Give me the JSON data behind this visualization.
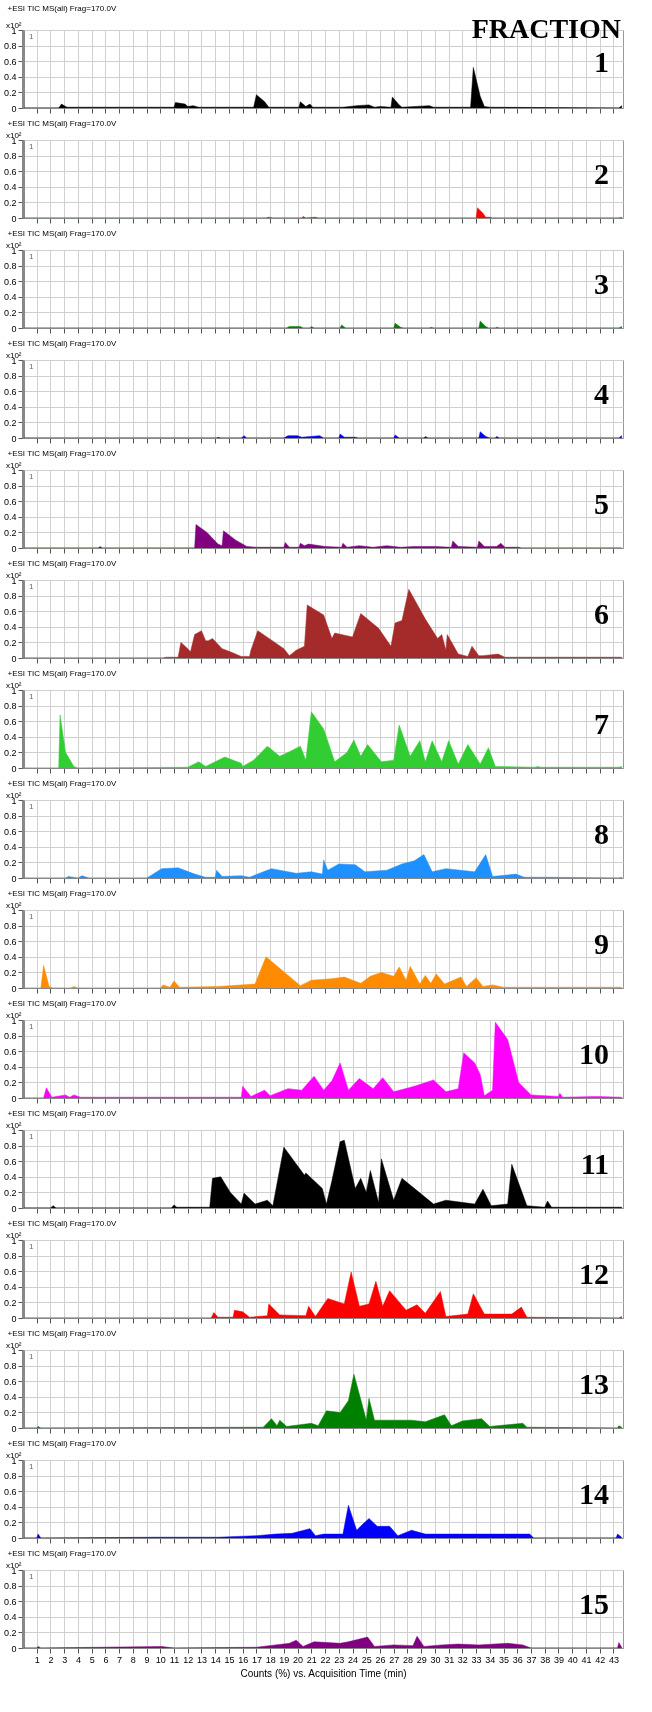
{
  "chart_data": [
    {
      "type": "area",
      "title": "+ESI TIC MS(all) Frag=170.0V",
      "ylabel": "x10²",
      "annotations": [
        "1",
        "FRACTION",
        "1"
      ],
      "xlim": [
        0,
        43.7
      ],
      "ylim": [
        0,
        1
      ],
      "xticks": [
        1,
        2,
        3,
        4,
        5,
        6,
        7,
        8,
        9,
        10,
        11,
        12,
        13,
        14,
        15,
        16,
        17,
        18,
        19,
        20,
        21,
        22,
        23,
        24,
        25,
        26,
        27,
        28,
        29,
        30,
        31,
        32,
        33,
        34,
        35,
        36,
        37,
        38,
        39,
        40,
        41,
        42,
        43
      ],
      "yticks": [
        0,
        0.2,
        0.4,
        0.6,
        0.8,
        1
      ],
      "grid": true,
      "tick_labels": "y",
      "x": [
        0.1,
        2.6,
        2.8,
        3.2,
        11.0,
        11.1,
        11.8,
        12.0,
        12.4,
        12.8,
        16.8,
        17.0,
        17.6,
        17.9,
        20.1,
        20.2,
        20.6,
        20.9,
        21.1,
        23.3,
        24.3,
        25.2,
        25.6,
        26.0,
        26.8,
        26.9,
        27.4,
        27.6,
        29.6,
        29.9,
        32.6,
        32.8,
        33.3,
        33.6,
        34.0,
        43.4,
        43.6
      ],
      "series": [
        {
          "color": "#000000",
          "values": [
            0,
            0,
            0.05,
            0.01,
            0.01,
            0.07,
            0.05,
            0.02,
            0.03,
            0.01,
            0.01,
            0.17,
            0.08,
            0.01,
            0.01,
            0.08,
            0.02,
            0.05,
            0.01,
            0.01,
            0.03,
            0.04,
            0.01,
            0.02,
            0.01,
            0.14,
            0.04,
            0.01,
            0.03,
            0.01,
            0.01,
            0.52,
            0.15,
            0.02,
            0.01,
            0,
            0.03
          ]
        }
      ]
    },
    {
      "type": "area",
      "title": "+ESI TIC MS(all) Frag=170.0V",
      "ylabel": "x10²",
      "annotations": [
        "1",
        "2"
      ],
      "xlim": [
        0,
        43.7
      ],
      "ylim": [
        0,
        1
      ],
      "xticks": [
        1,
        2,
        3,
        4,
        5,
        6,
        7,
        8,
        9,
        10,
        11,
        12,
        13,
        14,
        15,
        16,
        17,
        18,
        19,
        20,
        21,
        22,
        23,
        24,
        25,
        26,
        27,
        28,
        29,
        30,
        31,
        32,
        33,
        34,
        35,
        36,
        37,
        38,
        39,
        40,
        41,
        42,
        43
      ],
      "yticks": [
        0,
        0.2,
        0.4,
        0.6,
        0.8,
        1
      ],
      "grid": true,
      "tick_labels": "y",
      "x": [
        0.1,
        17.7,
        17.9,
        18.2,
        20.3,
        20.4,
        20.6,
        21.3,
        21.5,
        33.0,
        33.1,
        33.5,
        33.7,
        34.0,
        34.2,
        43.4,
        43.6
      ],
      "series": [
        {
          "color": "#ff0000",
          "values": [
            0,
            0,
            0.01,
            0,
            0,
            0.02,
            0,
            0.01,
            0,
            0,
            0.13,
            0.06,
            0.01,
            0.01,
            0,
            0,
            0.01
          ]
        }
      ]
    },
    {
      "type": "area",
      "title": "+ESI TIC MS(all) Frag=170.0V",
      "ylabel": "x10²",
      "annotations": [
        "1",
        "3"
      ],
      "xlim": [
        0,
        43.7
      ],
      "ylim": [
        0,
        1
      ],
      "xticks": [
        1,
        2,
        3,
        4,
        5,
        6,
        7,
        8,
        9,
        10,
        11,
        12,
        13,
        14,
        15,
        16,
        17,
        18,
        19,
        20,
        21,
        22,
        23,
        24,
        25,
        26,
        27,
        28,
        29,
        30,
        31,
        32,
        33,
        34,
        35,
        36,
        37,
        38,
        39,
        40,
        41,
        42,
        43
      ],
      "yticks": [
        0,
        0.2,
        0.4,
        0.6,
        0.8,
        1
      ],
      "grid": true,
      "tick_labels": "y",
      "x": [
        0.1,
        19.2,
        19.4,
        20.2,
        20.4,
        20.9,
        21.0,
        21.2,
        23.1,
        23.2,
        23.5,
        27.0,
        27.1,
        27.5,
        27.7,
        29.6,
        29.7,
        29.9,
        33.2,
        33.3,
        33.7,
        33.9,
        34.4,
        34.5,
        34.7,
        43.4,
        43.6
      ],
      "series": [
        {
          "color": "#008000",
          "values": [
            0,
            0,
            0.02,
            0.02,
            0,
            0,
            0.02,
            0,
            0,
            0.04,
            0,
            0,
            0.06,
            0.01,
            0,
            0,
            0.01,
            0,
            0,
            0.09,
            0.02,
            0,
            0,
            0.01,
            0,
            0,
            0.02
          ]
        }
      ]
    },
    {
      "type": "area",
      "title": "+ESI TIC MS(all) Frag=170.0V",
      "ylabel": "x10²",
      "annotations": [
        "1",
        "4"
      ],
      "xlim": [
        0,
        43.7
      ],
      "ylim": [
        0,
        1
      ],
      "xticks": [
        1,
        2,
        3,
        4,
        5,
        6,
        7,
        8,
        9,
        10,
        11,
        12,
        13,
        14,
        15,
        16,
        17,
        18,
        19,
        20,
        21,
        22,
        23,
        24,
        25,
        26,
        27,
        28,
        29,
        30,
        31,
        32,
        33,
        34,
        35,
        36,
        37,
        38,
        39,
        40,
        41,
        42,
        43
      ],
      "yticks": [
        0,
        0.2,
        0.4,
        0.6,
        0.8,
        1
      ],
      "grid": true,
      "tick_labels": "y",
      "x": [
        0.1,
        14.1,
        14.2,
        14.4,
        15.9,
        16.1,
        16.3,
        19.0,
        19.3,
        20.0,
        20.3,
        21.6,
        21.9,
        23.0,
        23.1,
        23.4,
        24.2,
        24.4,
        27.0,
        27.1,
        27.4,
        29.2,
        29.3,
        29.5,
        33.2,
        33.3,
        33.7,
        34.0,
        34.4,
        34.5,
        34.7,
        43.4,
        43.6
      ],
      "series": [
        {
          "color": "#0000ff",
          "values": [
            0,
            0,
            0.01,
            0,
            0,
            0.03,
            0,
            0,
            0.03,
            0.03,
            0.01,
            0.03,
            0,
            0,
            0.05,
            0.01,
            0.01,
            0,
            0,
            0.04,
            0,
            0,
            0.02,
            0,
            0,
            0.08,
            0.02,
            0,
            0,
            0.02,
            0,
            0,
            0.03
          ]
        }
      ]
    },
    {
      "type": "area",
      "title": "+ESI TIC MS(all) Frag=170.0V",
      "ylabel": "x10²",
      "annotations": [
        "1",
        "5"
      ],
      "xlim": [
        0,
        43.7
      ],
      "ylim": [
        0,
        1
      ],
      "xticks": [
        1,
        2,
        3,
        4,
        5,
        6,
        7,
        8,
        9,
        10,
        11,
        12,
        13,
        14,
        15,
        16,
        17,
        18,
        19,
        20,
        21,
        22,
        23,
        24,
        25,
        26,
        27,
        28,
        29,
        30,
        31,
        32,
        33,
        34,
        35,
        36,
        37,
        38,
        39,
        40,
        41,
        42,
        43
      ],
      "yticks": [
        0,
        0.2,
        0.4,
        0.6,
        0.8,
        1
      ],
      "grid": true,
      "tick_labels": "y",
      "x": [
        0.1,
        5.5,
        5.6,
        5.8,
        12.5,
        12.6,
        13.4,
        14.2,
        14.5,
        14.6,
        15.5,
        16.3,
        17.0,
        19.0,
        19.1,
        19.4,
        20.1,
        20.2,
        20.5,
        20.8,
        22.0,
        23.2,
        23.3,
        23.6,
        24.5,
        25.5,
        26.5,
        27.5,
        28.5,
        30.0,
        31.2,
        31.3,
        31.7,
        33.1,
        33.2,
        33.6,
        34.5,
        34.8,
        35.1,
        36.1,
        36.3,
        43.6
      ],
      "series": [
        {
          "color": "#800080",
          "values": [
            0,
            0,
            0.02,
            0,
            0,
            0.3,
            0.2,
            0.05,
            0.03,
            0.22,
            0.1,
            0.02,
            0.01,
            0.01,
            0.07,
            0.01,
            0.01,
            0.06,
            0.03,
            0.05,
            0.02,
            0.01,
            0.06,
            0.01,
            0.03,
            0.01,
            0.03,
            0.01,
            0.02,
            0.02,
            0.01,
            0.09,
            0.02,
            0.01,
            0.09,
            0.02,
            0.02,
            0.06,
            0.01,
            0.01,
            0,
            0
          ]
        }
      ]
    },
    {
      "type": "area",
      "title": "+ESI TIC MS(all) Frag=170.0V",
      "ylabel": "x10²",
      "annotations": [
        "1",
        "6"
      ],
      "xlim": [
        0,
        43.7
      ],
      "ylim": [
        0,
        1
      ],
      "xticks": [
        1,
        2,
        3,
        4,
        5,
        6,
        7,
        8,
        9,
        10,
        11,
        12,
        13,
        14,
        15,
        16,
        17,
        18,
        19,
        20,
        21,
        22,
        23,
        24,
        25,
        26,
        27,
        28,
        29,
        30,
        31,
        32,
        33,
        34,
        35,
        36,
        37,
        38,
        39,
        40,
        41,
        42,
        43
      ],
      "yticks": [
        0,
        0.2,
        0.4,
        0.6,
        0.8,
        1
      ],
      "grid": true,
      "tick_labels": "y",
      "x": [
        0.1,
        10.2,
        10.4,
        11.3,
        11.5,
        12.0,
        12.2,
        12.5,
        13.0,
        13.3,
        13.5,
        13.8,
        14.5,
        15.1,
        15.9,
        16.5,
        16.6,
        17.1,
        19.0,
        19.4,
        19.9,
        20.5,
        20.7,
        21.9,
        22.5,
        22.7,
        24.0,
        24.6,
        25.9,
        26.8,
        27.1,
        27.6,
        28.1,
        29.3,
        30.2,
        30.5,
        30.8,
        30.9,
        31.7,
        32.4,
        32.7,
        33.2,
        33.5,
        34.6,
        35.1,
        37.0,
        43.6
      ],
      "series": [
        {
          "color": "#a52a2a",
          "values": [
            0,
            0,
            0.01,
            0.01,
            0.2,
            0.12,
            0.08,
            0.3,
            0.35,
            0.22,
            0.22,
            0.25,
            0.12,
            0.08,
            0.02,
            0.02,
            0.1,
            0.35,
            0.12,
            0.03,
            0.1,
            0.15,
            0.68,
            0.55,
            0.25,
            0.32,
            0.27,
            0.57,
            0.38,
            0.15,
            0.45,
            0.48,
            0.88,
            0.5,
            0.25,
            0.3,
            0.1,
            0.3,
            0.05,
            0.02,
            0.15,
            0.03,
            0.03,
            0.05,
            0.01,
            0.01,
            0.01
          ]
        }
      ]
    },
    {
      "type": "area",
      "title": "+ESI TIC MS(all) Frag=170.0V",
      "ylabel": "x10²",
      "annotations": [
        "1",
        "7"
      ],
      "xlim": [
        0,
        43.7
      ],
      "ylim": [
        0,
        1
      ],
      "xticks": [
        1,
        2,
        3,
        4,
        5,
        6,
        7,
        8,
        9,
        10,
        11,
        12,
        13,
        14,
        15,
        16,
        17,
        18,
        19,
        20,
        21,
        22,
        23,
        24,
        25,
        26,
        27,
        28,
        29,
        30,
        31,
        32,
        33,
        34,
        35,
        36,
        37,
        38,
        39,
        40,
        41,
        42,
        43
      ],
      "yticks": [
        0,
        0.2,
        0.4,
        0.6,
        0.8,
        1
      ],
      "grid": true,
      "tick_labels": "y",
      "x": [
        0.1,
        2.6,
        2.7,
        3.1,
        3.7,
        4.0,
        12.0,
        12.8,
        13.3,
        14.7,
        15.9,
        16.0,
        16.8,
        17.8,
        18.7,
        19.3,
        20.2,
        20.6,
        21.0,
        21.9,
        22.7,
        23.6,
        24.1,
        24.6,
        25.1,
        26.1,
        27.0,
        27.4,
        28.2,
        28.9,
        29.3,
        29.8,
        30.5,
        31.0,
        31.7,
        32.4,
        33.3,
        33.9,
        34.4,
        37.3,
        37.5,
        37.7,
        43.4,
        43.6
      ],
      "series": [
        {
          "color": "#32cd32",
          "values": [
            0,
            0,
            0.68,
            0.2,
            0.02,
            0,
            0.01,
            0.08,
            0.02,
            0.14,
            0.06,
            0.02,
            0.1,
            0.28,
            0.15,
            0.2,
            0.28,
            0.1,
            0.72,
            0.5,
            0.08,
            0.2,
            0.36,
            0.15,
            0.3,
            0.08,
            0.1,
            0.55,
            0.15,
            0.35,
            0.08,
            0.35,
            0.08,
            0.35,
            0.05,
            0.3,
            0.05,
            0.26,
            0.02,
            0.01,
            0.02,
            0.01,
            0.01,
            0.02
          ]
        }
      ]
    },
    {
      "type": "area",
      "title": "+ESI TIC MS(all) Frag=170.0V",
      "ylabel": "x10²",
      "annotations": [
        "1",
        "8"
      ],
      "xlim": [
        0,
        43.7
      ],
      "ylim": [
        0,
        1
      ],
      "xticks": [
        1,
        2,
        3,
        4,
        5,
        6,
        7,
        8,
        9,
        10,
        11,
        12,
        13,
        14,
        15,
        16,
        17,
        18,
        19,
        20,
        21,
        22,
        23,
        24,
        25,
        26,
        27,
        28,
        29,
        30,
        31,
        32,
        33,
        34,
        35,
        36,
        37,
        38,
        39,
        40,
        41,
        42,
        43
      ],
      "yticks": [
        0,
        0.2,
        0.4,
        0.6,
        0.8,
        1
      ],
      "grid": true,
      "tick_labels": "y",
      "x": [
        0.1,
        3.1,
        3.3,
        4.0,
        4.3,
        4.8,
        9.0,
        9.2,
        10.1,
        11.3,
        12.5,
        13.3,
        14.0,
        14.1,
        14.5,
        15.9,
        16.5,
        17.5,
        18.1,
        19.9,
        21.0,
        21.8,
        21.9,
        22.2,
        23.0,
        24.2,
        24.9,
        26.5,
        27.6,
        28.5,
        29.2,
        29.8,
        30.8,
        32.9,
        33.7,
        34.2,
        35.9,
        36.5,
        38.2,
        43.4,
        43.6
      ],
      "series": [
        {
          "color": "#1e90ff",
          "values": [
            0,
            0,
            0.02,
            0,
            0.03,
            0,
            0,
            0.02,
            0.12,
            0.13,
            0.05,
            0.01,
            0.01,
            0.1,
            0.02,
            0.03,
            0.01,
            0.08,
            0.12,
            0.06,
            0.08,
            0.05,
            0.23,
            0.1,
            0.18,
            0.17,
            0.08,
            0.1,
            0.18,
            0.22,
            0.3,
            0.08,
            0.12,
            0.08,
            0.3,
            0.02,
            0.05,
            0.01,
            0.01,
            0,
            0.01
          ]
        }
      ]
    },
    {
      "type": "area",
      "title": "+ESI TIC MS(all) Frag=170.0V",
      "ylabel": "x10²",
      "annotations": [
        "1",
        "9"
      ],
      "xlim": [
        0,
        43.7
      ],
      "ylim": [
        0,
        1
      ],
      "xticks": [
        1,
        2,
        3,
        4,
        5,
        6,
        7,
        8,
        9,
        10,
        11,
        12,
        13,
        14,
        15,
        16,
        17,
        18,
        19,
        20,
        21,
        22,
        23,
        24,
        25,
        26,
        27,
        28,
        29,
        30,
        31,
        32,
        33,
        34,
        35,
        36,
        37,
        38,
        39,
        40,
        41,
        42,
        43
      ],
      "yticks": [
        0,
        0.2,
        0.4,
        0.6,
        0.8,
        1
      ],
      "grid": true,
      "tick_labels": "y",
      "x": [
        0.1,
        1.3,
        1.5,
        1.9,
        2.2,
        3.5,
        3.7,
        4.0,
        10.0,
        10.2,
        10.7,
        11.0,
        11.4,
        14.2,
        16.9,
        17.7,
        20.2,
        21.0,
        22.5,
        23.4,
        24.6,
        25.3,
        26.1,
        27.0,
        27.4,
        27.9,
        28.2,
        28.9,
        29.3,
        29.7,
        30.1,
        30.7,
        31.9,
        32.3,
        33.0,
        33.5,
        34.2,
        35.0,
        43.6
      ],
      "series": [
        {
          "color": "#ff8c00",
          "values": [
            0,
            0,
            0.29,
            0.02,
            0,
            0,
            0.02,
            0,
            0,
            0.04,
            0.01,
            0.09,
            0.01,
            0.02,
            0.05,
            0.4,
            0.03,
            0.1,
            0.12,
            0.14,
            0.06,
            0.15,
            0.2,
            0.15,
            0.27,
            0.1,
            0.28,
            0.05,
            0.16,
            0.06,
            0.18,
            0.05,
            0.14,
            0.02,
            0.13,
            0.02,
            0.04,
            0.01,
            0.01
          ]
        }
      ]
    },
    {
      "type": "area",
      "title": "+ESI TIC MS(all) Frag=170.0V",
      "ylabel": "x10²",
      "annotations": [
        "1",
        "10"
      ],
      "xlim": [
        0,
        43.7
      ],
      "ylim": [
        0,
        1
      ],
      "xticks": [
        1,
        2,
        3,
        4,
        5,
        6,
        7,
        8,
        9,
        10,
        11,
        12,
        13,
        14,
        15,
        16,
        17,
        18,
        19,
        20,
        21,
        22,
        23,
        24,
        25,
        26,
        27,
        28,
        29,
        30,
        31,
        32,
        33,
        34,
        35,
        36,
        37,
        38,
        39,
        40,
        41,
        42,
        43
      ],
      "yticks": [
        0,
        0.2,
        0.4,
        0.6,
        0.8,
        1
      ],
      "grid": true,
      "tick_labels": "y",
      "x": [
        0.1,
        1.5,
        1.7,
        2.1,
        3.1,
        3.4,
        3.7,
        4.2,
        12.2,
        15.9,
        16.0,
        16.6,
        17.6,
        18.0,
        19.3,
        20.3,
        21.2,
        21.9,
        22.5,
        23.1,
        23.7,
        24.5,
        25.5,
        26.2,
        27.0,
        28.5,
        29.9,
        30.8,
        31.7,
        32.1,
        32.9,
        33.3,
        33.6,
        34.2,
        34.4,
        35.3,
        36.1,
        37.0,
        39.0,
        39.1,
        39.3,
        41.8,
        43.6
      ],
      "series": [
        {
          "color": "#ff00ff",
          "values": [
            0,
            0,
            0.13,
            0.01,
            0.04,
            0.01,
            0.04,
            0.01,
            0.01,
            0.01,
            0.15,
            0.02,
            0.1,
            0.03,
            0.12,
            0.1,
            0.28,
            0.1,
            0.22,
            0.45,
            0.1,
            0.25,
            0.12,
            0.26,
            0.08,
            0.15,
            0.23,
            0.08,
            0.12,
            0.58,
            0.45,
            0.3,
            0.03,
            0.1,
            0.97,
            0.75,
            0.2,
            0.04,
            0.02,
            0.06,
            0.01,
            0.02,
            0.01
          ]
        }
      ]
    },
    {
      "type": "area",
      "title": "+ESI TIC MS(all) Frag=170.0V",
      "ylabel": "x10²",
      "annotations": [
        "1",
        "11"
      ],
      "xlim": [
        0,
        43.7
      ],
      "ylim": [
        0,
        1
      ],
      "xticks": [
        1,
        2,
        3,
        4,
        5,
        6,
        7,
        8,
        9,
        10,
        11,
        12,
        13,
        14,
        15,
        16,
        17,
        18,
        19,
        20,
        21,
        22,
        23,
        24,
        25,
        26,
        27,
        28,
        29,
        30,
        31,
        32,
        33,
        34,
        35,
        36,
        37,
        38,
        39,
        40,
        41,
        42,
        43
      ],
      "yticks": [
        0,
        0.2,
        0.4,
        0.6,
        0.8,
        1
      ],
      "grid": true,
      "tick_labels": "y",
      "x": [
        0.1,
        2.0,
        2.2,
        2.4,
        10.8,
        11.0,
        11.2,
        13.6,
        13.8,
        14.4,
        15.1,
        15.9,
        16.1,
        16.9,
        17.8,
        18.2,
        19.0,
        20.5,
        20.6,
        21.8,
        22.1,
        22.5,
        23.1,
        23.4,
        24.2,
        24.6,
        25.0,
        25.3,
        25.9,
        26.1,
        27.0,
        27.6,
        29.9,
        30.8,
        32.9,
        33.5,
        34.1,
        35.3,
        35.6,
        36.7,
        38.0,
        38.2,
        38.5,
        43.6
      ],
      "series": [
        {
          "color": "#000000",
          "values": [
            0,
            0,
            0.03,
            0,
            0,
            0.04,
            0.01,
            0.01,
            0.38,
            0.4,
            0.2,
            0.05,
            0.19,
            0.05,
            0.1,
            0.03,
            0.78,
            0.42,
            0.45,
            0.25,
            0.05,
            0.35,
            0.85,
            0.87,
            0.25,
            0.38,
            0.2,
            0.48,
            0.07,
            0.63,
            0.1,
            0.38,
            0.05,
            0.1,
            0.05,
            0.24,
            0.03,
            0.05,
            0.56,
            0.03,
            0.01,
            0.09,
            0.01,
            0.01
          ]
        }
      ]
    },
    {
      "type": "area",
      "title": "+ESI TIC MS(all) Frag=170.0V",
      "ylabel": "x10²",
      "annotations": [
        "1",
        "12"
      ],
      "xlim": [
        0,
        43.7
      ],
      "ylim": [
        0,
        1
      ],
      "xticks": [
        1,
        2,
        3,
        4,
        5,
        6,
        7,
        8,
        9,
        10,
        11,
        12,
        13,
        14,
        15,
        16,
        17,
        18,
        19,
        20,
        21,
        22,
        23,
        24,
        25,
        26,
        27,
        28,
        29,
        30,
        31,
        32,
        33,
        34,
        35,
        36,
        37,
        38,
        39,
        40,
        41,
        42,
        43
      ],
      "yticks": [
        0,
        0.2,
        0.4,
        0.6,
        0.8,
        1
      ],
      "grid": true,
      "tick_labels": "y",
      "x": [
        0.1,
        13.7,
        13.9,
        14.2,
        15.3,
        15.4,
        16.0,
        16.5,
        17.8,
        17.9,
        18.7,
        20.6,
        20.8,
        21.3,
        22.2,
        23.4,
        23.9,
        24.5,
        25.2,
        25.7,
        26.2,
        26.7,
        27.9,
        28.7,
        29.3,
        30.4,
        30.8,
        32.4,
        32.8,
        33.6,
        35.6,
        36.3,
        36.7,
        43.4,
        43.6
      ],
      "series": [
        {
          "color": "#ff0000",
          "values": [
            0,
            0,
            0.07,
            0.01,
            0.01,
            0.1,
            0.08,
            0.01,
            0.03,
            0.18,
            0.04,
            0.03,
            0.15,
            0.02,
            0.25,
            0.18,
            0.59,
            0.15,
            0.18,
            0.47,
            0.15,
            0.35,
            0.1,
            0.17,
            0.06,
            0.34,
            0.02,
            0.05,
            0.31,
            0.05,
            0.05,
            0.14,
            0.01,
            0,
            0.02
          ]
        }
      ]
    },
    {
      "type": "area",
      "title": "+ESI TIC MS(all) Frag=170.0V",
      "ylabel": "x10²",
      "annotations": [
        "1",
        "13"
      ],
      "xlim": [
        0,
        43.7
      ],
      "ylim": [
        0,
        1
      ],
      "xticks": [
        1,
        2,
        3,
        4,
        5,
        6,
        7,
        8,
        9,
        10,
        11,
        12,
        13,
        14,
        15,
        16,
        17,
        18,
        19,
        20,
        21,
        22,
        23,
        24,
        25,
        26,
        27,
        28,
        29,
        30,
        31,
        32,
        33,
        34,
        35,
        36,
        37,
        38,
        39,
        40,
        41,
        42,
        43
      ],
      "yticks": [
        0,
        0.2,
        0.4,
        0.6,
        0.8,
        1
      ],
      "grid": true,
      "tick_labels": "y",
      "x": [
        0.1,
        1.0,
        1.1,
        1.3,
        17.5,
        18.1,
        18.5,
        18.7,
        19.2,
        21.0,
        21.5,
        22.1,
        23.1,
        23.7,
        24.1,
        24.7,
        25.0,
        25.2,
        25.6,
        27.0,
        28.3,
        29.3,
        30.7,
        31.2,
        32.0,
        33.4,
        34.0,
        36.4,
        36.7,
        43.3,
        43.4,
        43.6
      ],
      "series": [
        {
          "color": "#008000",
          "values": [
            0,
            0,
            0.02,
            0,
            0.01,
            0.12,
            0.03,
            0.1,
            0.02,
            0.06,
            0.03,
            0.22,
            0.2,
            0.35,
            0.69,
            0.3,
            0.1,
            0.38,
            0.1,
            0.1,
            0.1,
            0.08,
            0.17,
            0.03,
            0.09,
            0.12,
            0.02,
            0.06,
            0.01,
            0,
            0.03,
            0.01
          ]
        }
      ]
    },
    {
      "type": "area",
      "title": "+ESI TIC MS(all) Frag=170.0V",
      "ylabel": "x10²",
      "annotations": [
        "1",
        "14"
      ],
      "xlim": [
        0,
        43.7
      ],
      "ylim": [
        0,
        1
      ],
      "xticks": [
        1,
        2,
        3,
        4,
        5,
        6,
        7,
        8,
        9,
        10,
        11,
        12,
        13,
        14,
        15,
        16,
        17,
        18,
        19,
        20,
        21,
        22,
        23,
        24,
        25,
        26,
        27,
        28,
        29,
        30,
        31,
        32,
        33,
        34,
        35,
        36,
        37,
        38,
        39,
        40,
        41,
        42,
        43
      ],
      "yticks": [
        0,
        0.2,
        0.4,
        0.6,
        0.8,
        1
      ],
      "grid": true,
      "tick_labels": "y",
      "x": [
        0.1,
        1.0,
        1.1,
        1.3,
        9.8,
        11.0,
        14.2,
        17.0,
        18.4,
        19.6,
        20.9,
        21.3,
        21.9,
        23.3,
        23.7,
        24.3,
        24.7,
        25.2,
        25.8,
        26.7,
        27.3,
        28.3,
        29.3,
        32.4,
        35.4,
        36.9,
        37.2,
        43.2,
        43.3,
        43.6
      ],
      "series": [
        {
          "color": "#0000ff",
          "values": [
            0,
            0,
            0.05,
            0,
            0.01,
            0.01,
            0.01,
            0.03,
            0.05,
            0.06,
            0.12,
            0.03,
            0.05,
            0.05,
            0.42,
            0.1,
            0.17,
            0.25,
            0.15,
            0.15,
            0.03,
            0.1,
            0.05,
            0.05,
            0.05,
            0.05,
            0,
            0,
            0.05,
            0.01
          ]
        }
      ]
    },
    {
      "type": "area",
      "title": "+ESI TIC MS(all) Frag=170.0V",
      "ylabel": "x10²",
      "xlabel": "Counts (%) vs. Acquisition Time (min)",
      "annotations": [
        "1",
        "15"
      ],
      "xlim": [
        0,
        43.7
      ],
      "ylim": [
        0,
        1
      ],
      "xticks": [
        1,
        2,
        3,
        4,
        5,
        6,
        7,
        8,
        9,
        10,
        11,
        12,
        13,
        14,
        15,
        16,
        17,
        18,
        19,
        20,
        21,
        22,
        23,
        24,
        25,
        26,
        27,
        28,
        29,
        30,
        31,
        32,
        33,
        34,
        35,
        36,
        37,
        38,
        39,
        40,
        41,
        42,
        43
      ],
      "yticks": [
        0,
        0.2,
        0.4,
        0.6,
        0.8,
        1
      ],
      "grid": true,
      "x": [
        0.1,
        1.0,
        1.1,
        1.3,
        10.1,
        11.0,
        17.0,
        18.4,
        19.4,
        19.9,
        20.4,
        21.2,
        23.1,
        23.7,
        25.1,
        25.6,
        27.0,
        28.4,
        28.7,
        29.2,
        30.5,
        31.7,
        33.2,
        35.3,
        36.4,
        37.0,
        43.3,
        43.4,
        43.6
      ],
      "series": [
        {
          "color": "#800080",
          "values": [
            0,
            0,
            0.02,
            0,
            0.02,
            0,
            0.01,
            0.04,
            0.06,
            0.1,
            0.02,
            0.08,
            0.06,
            0.08,
            0.14,
            0.02,
            0.04,
            0.03,
            0.15,
            0.02,
            0.04,
            0.05,
            0.04,
            0.06,
            0.04,
            0,
            0,
            0.07,
            0.01
          ]
        }
      ]
    }
  ]
}
